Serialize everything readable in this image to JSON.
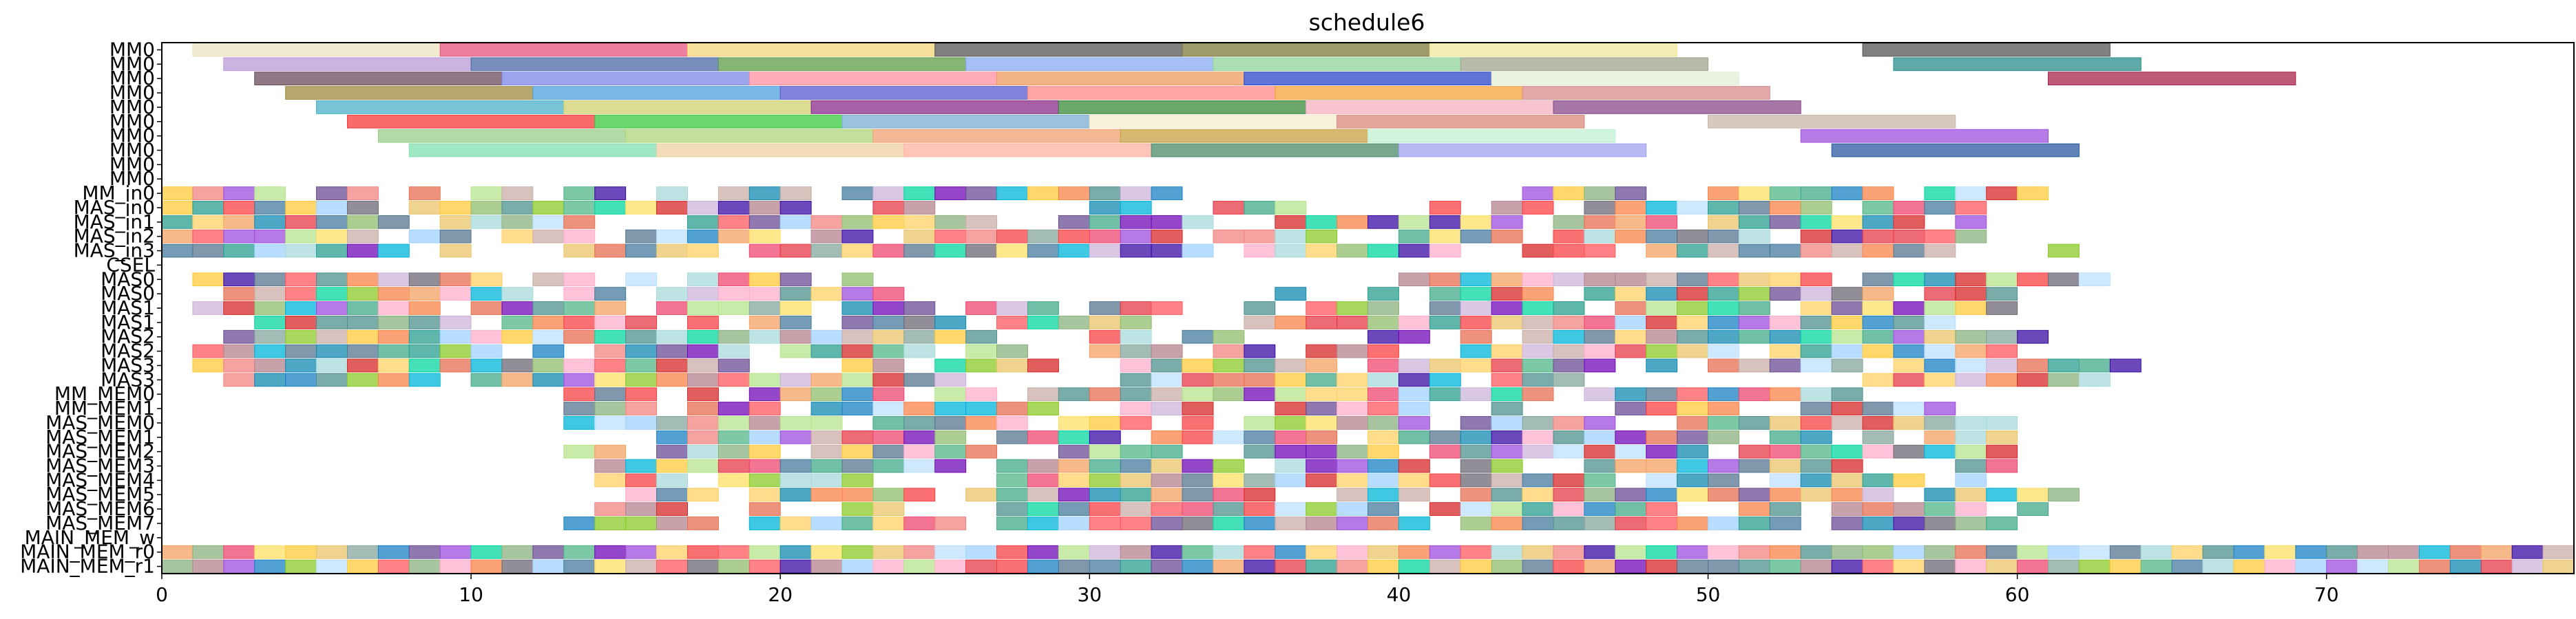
{
  "chart_data": {
    "type": "gantt",
    "title": "schedule6",
    "xlim": [
      0,
      78
    ],
    "xticks": [
      0,
      10,
      20,
      30,
      40,
      50,
      60,
      70
    ],
    "rows": [
      "MM0",
      "MM0",
      "MM0",
      "MM0",
      "MM0",
      "MM0",
      "MM0",
      "MM0",
      "MM0",
      "MM0",
      "MM_in0",
      "MAS_in0",
      "MAS_in1",
      "MAS_in2",
      "MAS_in3",
      "CSEL",
      "MAS0",
      "MAS0",
      "MAS1",
      "MAS1",
      "MAS2",
      "MAS2",
      "MAS3",
      "MAS3",
      "MM_MEM0",
      "MM_MEM1",
      "MAS_MEM0",
      "MAS_MEM1",
      "MAS_MEM2",
      "MAS_MEM3",
      "MAS_MEM4",
      "MAS_MEM5",
      "MAS_MEM6",
      "MAS_MEM7",
      "MAIN_MEM_w",
      "MAIN_MEM_r0",
      "MAIN_MEM_r1"
    ],
    "palette": [
      "#f4a261",
      "#e76f51",
      "#2a9d8f",
      "#8ab17d",
      "#e9c46a",
      "#a8dadc",
      "#457b9d",
      "#e63946",
      "#6a4c93",
      "#1982c4",
      "#8ac926",
      "#ffca3a",
      "#ff595e",
      "#b5838d",
      "#6d6875",
      "#cdb4db",
      "#ffafcc",
      "#bde0fe",
      "#a2d2ff",
      "#52b788",
      "#d62828",
      "#9d4edd",
      "#00b4d8",
      "#90be6d",
      "#f9844a",
      "#43aa8b",
      "#577590",
      "#f94144",
      "#4d908e",
      "#c9ada7",
      "#ffd166",
      "#06d6a0",
      "#118ab2",
      "#ef476f",
      "#7209b7",
      "#3a0ca3",
      "#b5e48c",
      "#ffe066",
      "#84a59d",
      "#f28482"
    ],
    "tasks": [
      {
        "row": 0,
        "start": 1,
        "end": 9,
        "c": "#e9e3c0"
      },
      {
        "row": 0,
        "start": 9,
        "end": 17,
        "c": "#e75480"
      },
      {
        "row": 0,
        "start": 17,
        "end": 25,
        "c": "#f3d37a"
      },
      {
        "row": 0,
        "start": 25,
        "end": 33,
        "c": "#555555"
      },
      {
        "row": 0,
        "start": 33,
        "end": 41,
        "c": "#7f7a3f"
      },
      {
        "row": 0,
        "start": 41,
        "end": 49,
        "c": "#efe59a"
      },
      {
        "row": 0,
        "start": 55,
        "end": 63,
        "c": "#555555"
      },
      {
        "row": 1,
        "start": 2,
        "end": 10,
        "c": "#b99ad8"
      },
      {
        "row": 1,
        "start": 10,
        "end": 18,
        "c": "#4b6aa8"
      },
      {
        "row": 1,
        "start": 18,
        "end": 26,
        "c": "#5d9e48"
      },
      {
        "row": 1,
        "start": 26,
        "end": 34,
        "c": "#88aaf0"
      },
      {
        "row": 1,
        "start": 34,
        "end": 42,
        "c": "#8fd49a"
      },
      {
        "row": 1,
        "start": 42,
        "end": 50,
        "c": "#9ea68c"
      },
      {
        "row": 1,
        "start": 56,
        "end": 64,
        "c": "#2b8c8c"
      },
      {
        "row": 2,
        "start": 3,
        "end": 11,
        "c": "#6a4c5c"
      },
      {
        "row": 2,
        "start": 11,
        "end": 19,
        "c": "#7c86e8"
      },
      {
        "row": 2,
        "start": 19,
        "end": 27,
        "c": "#ff8fa0"
      },
      {
        "row": 2,
        "start": 27,
        "end": 35,
        "c": "#ee9a5e"
      },
      {
        "row": 2,
        "start": 35,
        "end": 43,
        "c": "#2a46c8"
      },
      {
        "row": 2,
        "start": 43,
        "end": 51,
        "c": "#e4efd6"
      },
      {
        "row": 2,
        "start": 61,
        "end": 69,
        "c": "#a8234a"
      },
      {
        "row": 3,
        "start": 4,
        "end": 12,
        "c": "#a08a3c"
      },
      {
        "row": 3,
        "start": 12,
        "end": 20,
        "c": "#4ea0e0"
      },
      {
        "row": 3,
        "start": 20,
        "end": 28,
        "c": "#5a5ad0"
      },
      {
        "row": 3,
        "start": 28,
        "end": 36,
        "c": "#ff8a8a"
      },
      {
        "row": 3,
        "start": 36,
        "end": 44,
        "c": "#f4a23a"
      },
      {
        "row": 3,
        "start": 44,
        "end": 52,
        "c": "#d88a8a"
      },
      {
        "row": 4,
        "start": 5,
        "end": 13,
        "c": "#4ab0c8"
      },
      {
        "row": 4,
        "start": 13,
        "end": 21,
        "c": "#d0d070"
      },
      {
        "row": 4,
        "start": 21,
        "end": 29,
        "c": "#8a2a8a"
      },
      {
        "row": 4,
        "start": 29,
        "end": 37,
        "c": "#3a8a3a"
      },
      {
        "row": 4,
        "start": 37,
        "end": 45,
        "c": "#f5b0c0"
      },
      {
        "row": 4,
        "start": 45,
        "end": 53,
        "c": "#8a4a8a"
      },
      {
        "row": 5,
        "start": 6,
        "end": 14,
        "c": "#f53a3a"
      },
      {
        "row": 5,
        "start": 14,
        "end": 22,
        "c": "#3ac83a"
      },
      {
        "row": 5,
        "start": 22,
        "end": 30,
        "c": "#7aaed0"
      },
      {
        "row": 5,
        "start": 30,
        "end": 38,
        "c": "#f6ecd0"
      },
      {
        "row": 5,
        "start": 38,
        "end": 46,
        "c": "#d98a7a"
      },
      {
        "row": 5,
        "start": 50,
        "end": 58,
        "c": "#c8b8a8"
      },
      {
        "row": 6,
        "start": 7,
        "end": 15,
        "c": "#9acc8a"
      },
      {
        "row": 6,
        "start": 15,
        "end": 23,
        "c": "#aed67a"
      },
      {
        "row": 6,
        "start": 23,
        "end": 31,
        "c": "#f0a070"
      },
      {
        "row": 6,
        "start": 31,
        "end": 39,
        "c": "#c8a040"
      },
      {
        "row": 6,
        "start": 39,
        "end": 47,
        "c": "#c0f0d0"
      },
      {
        "row": 6,
        "start": 53,
        "end": 61,
        "c": "#a050e0"
      },
      {
        "row": 7,
        "start": 8,
        "end": 16,
        "c": "#80e0b0"
      },
      {
        "row": 7,
        "start": 16,
        "end": 24,
        "c": "#f0d0a0"
      },
      {
        "row": 7,
        "start": 24,
        "end": 32,
        "c": "#ffb0a0"
      },
      {
        "row": 7,
        "start": 32,
        "end": 40,
        "c": "#4a8a6a"
      },
      {
        "row": 7,
        "start": 40,
        "end": 48,
        "c": "#a0a0f0"
      },
      {
        "row": 7,
        "start": 54,
        "end": 62,
        "c": "#2a5aa0"
      }
    ]
  }
}
